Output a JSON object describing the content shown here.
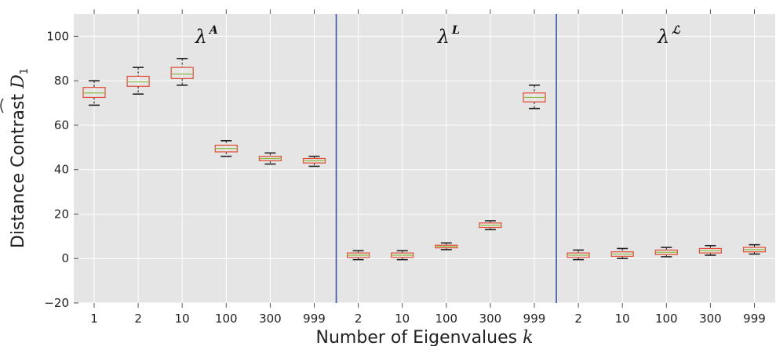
{
  "chart_data": {
    "type": "box",
    "xlabel": "Number of Eigenvalues",
    "xlabel_var": "k",
    "ylabel": "Distance Contrast",
    "ylabel_symbol": "D",
    "ylabel_subscript": "1",
    "ylim": [
      -20,
      110
    ],
    "yticks": [
      -20,
      0,
      20,
      40,
      60,
      80,
      100
    ],
    "grid": true,
    "colors": {
      "background": "#e5e5e5",
      "grid": "#ffffff",
      "box": "#e24a33",
      "median": "#8eba42",
      "whisker": "#222222",
      "divider": "#3a55a4"
    },
    "groups": [
      {
        "label": "λ",
        "sup": "A",
        "categories": [
          "1",
          "2",
          "10",
          "100",
          "300",
          "999"
        ]
      },
      {
        "label": "λ",
        "sup": "L",
        "categories": [
          "2",
          "10",
          "100",
          "300",
          "999"
        ]
      },
      {
        "label": "λ",
        "sup": "ℒ",
        "categories": [
          "2",
          "10",
          "100",
          "300",
          "999"
        ]
      }
    ],
    "boxes": [
      {
        "group": 0,
        "k": "1",
        "whislo": 69,
        "q1": 72.5,
        "med": 74.5,
        "q3": 77,
        "whishi": 80
      },
      {
        "group": 0,
        "k": "2",
        "whislo": 74,
        "q1": 77.5,
        "med": 79.5,
        "q3": 82,
        "whishi": 86
      },
      {
        "group": 0,
        "k": "10",
        "whislo": 78,
        "q1": 81,
        "med": 83,
        "q3": 86,
        "whishi": 90
      },
      {
        "group": 0,
        "k": "100",
        "whislo": 46,
        "q1": 48,
        "med": 49.5,
        "q3": 51,
        "whishi": 53
      },
      {
        "group": 0,
        "k": "300",
        "whislo": 42.5,
        "q1": 44,
        "med": 45,
        "q3": 46,
        "whishi": 47.5
      },
      {
        "group": 0,
        "k": "999",
        "whislo": 41.5,
        "q1": 43,
        "med": 44,
        "q3": 45,
        "whishi": 46
      },
      {
        "group": 1,
        "k": "2",
        "whislo": -0.5,
        "q1": 0.5,
        "med": 1.5,
        "q3": 2.5,
        "whishi": 3.5
      },
      {
        "group": 1,
        "k": "10",
        "whislo": -0.5,
        "q1": 0.5,
        "med": 1.5,
        "q3": 2.5,
        "whishi": 3.5
      },
      {
        "group": 1,
        "k": "100",
        "whislo": 4,
        "q1": 4.8,
        "med": 5.5,
        "q3": 6,
        "whishi": 7
      },
      {
        "group": 1,
        "k": "300",
        "whislo": 13,
        "q1": 14,
        "med": 15,
        "q3": 16,
        "whishi": 17
      },
      {
        "group": 1,
        "k": "999",
        "whislo": 67.5,
        "q1": 70.5,
        "med": 72.5,
        "q3": 74.5,
        "whishi": 78
      },
      {
        "group": 2,
        "k": "2",
        "whislo": -0.5,
        "q1": 0.5,
        "med": 1.5,
        "q3": 2.5,
        "whishi": 3.8
      },
      {
        "group": 2,
        "k": "10",
        "whislo": 0,
        "q1": 1,
        "med": 2,
        "q3": 3,
        "whishi": 4.5
      },
      {
        "group": 2,
        "k": "100",
        "whislo": 0.8,
        "q1": 1.8,
        "med": 2.8,
        "q3": 3.8,
        "whishi": 5
      },
      {
        "group": 2,
        "k": "300",
        "whislo": 1.5,
        "q1": 2.5,
        "med": 3.5,
        "q3": 4.5,
        "whishi": 5.8
      },
      {
        "group": 2,
        "k": "999",
        "whislo": 2,
        "q1": 3,
        "med": 4,
        "q3": 5,
        "whishi": 6.2
      }
    ]
  }
}
